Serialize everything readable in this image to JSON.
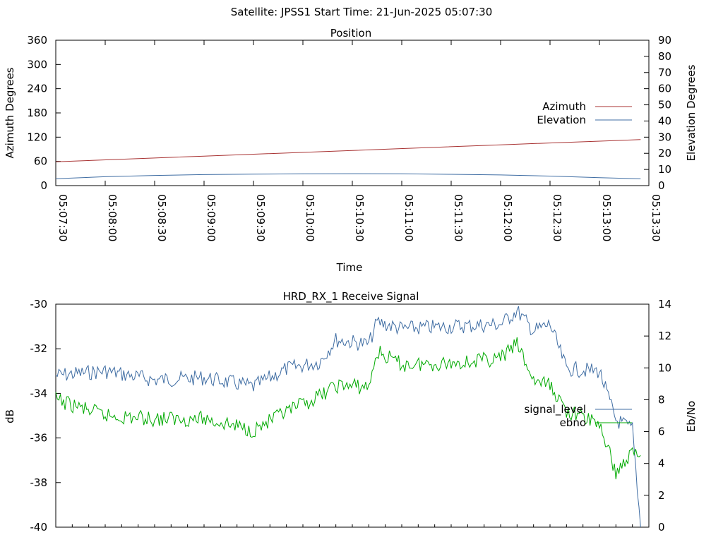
{
  "header": {
    "title": "Satellite: JPSS1    Start Time: 21-Jun-2025 05:07:30"
  },
  "colors": {
    "azimuth": "#a83232",
    "elevation": "#3f6da3",
    "signal_level": "#3f6da3",
    "ebno": "#00aa00"
  },
  "chart_data": [
    {
      "type": "line",
      "title": "Position",
      "xlabel": "Time",
      "ylabel": "Azimuth Degrees",
      "y2label": "Elevation Degrees",
      "x_range": [
        "05:07:30",
        "05:13:30"
      ],
      "x_ticks": [
        "05:07:30",
        "05:08:00",
        "05:08:30",
        "05:09:00",
        "05:09:30",
        "05:10:00",
        "05:10:30",
        "05:11:00",
        "05:11:30",
        "05:12:00",
        "05:12:30",
        "05:13:00",
        "05:13:30"
      ],
      "ylim": [
        0,
        360
      ],
      "y_ticks": [
        "0",
        "60",
        "120",
        "180",
        "240",
        "300",
        "360"
      ],
      "y2lim": [
        0,
        90
      ],
      "y2_ticks": [
        "0",
        "10",
        "20",
        "30",
        "40",
        "50",
        "60",
        "70",
        "80",
        "90"
      ],
      "legend": "right",
      "series": [
        {
          "name": "Azimuth",
          "axis": "y",
          "points": [
            [
              "05:07:30",
              59
            ],
            [
              "05:09:00",
              73
            ],
            [
              "05:10:30",
              87
            ],
            [
              "05:12:00",
              101
            ],
            [
              "05:13:25",
              114
            ]
          ]
        },
        {
          "name": "Elevation",
          "axis": "y2",
          "points": [
            [
              "05:07:30",
              4.3
            ],
            [
              "05:08:00",
              5.5
            ],
            [
              "05:08:30",
              6.3
            ],
            [
              "05:09:00",
              6.8
            ],
            [
              "05:09:30",
              7.1
            ],
            [
              "05:10:00",
              7.3
            ],
            [
              "05:10:30",
              7.4
            ],
            [
              "05:11:00",
              7.3
            ],
            [
              "05:11:30",
              7.0
            ],
            [
              "05:12:00",
              6.6
            ],
            [
              "05:12:30",
              5.9
            ],
            [
              "05:13:00",
              4.9
            ],
            [
              "05:13:25",
              4.2
            ]
          ]
        }
      ]
    },
    {
      "type": "line",
      "title": "HRD_RX_1 Receive Signal",
      "ylabel": "dB",
      "y2label": "Eb/No",
      "ylim": [
        -40,
        -30
      ],
      "y_ticks": [
        "-40",
        "-38",
        "-36",
        "-34",
        "-32",
        "-30"
      ],
      "y2lim": [
        0,
        14
      ],
      "y2_ticks": [
        "0",
        "2",
        "4",
        "6",
        "8",
        "10",
        "12",
        "14"
      ],
      "x_range": [
        "05:07:30",
        "05:13:30"
      ],
      "legend": "right",
      "series": [
        {
          "name": "signal_level",
          "axis": "y",
          "points": [
            [
              "05:07:30",
              -33.2
            ],
            [
              "05:08:00",
              -33.0
            ],
            [
              "05:08:30",
              -33.4
            ],
            [
              "05:09:00",
              -33.3
            ],
            [
              "05:09:30",
              -33.7
            ],
            [
              "05:09:50",
              -32.9
            ],
            [
              "05:10:10",
              -32.6
            ],
            [
              "05:10:20",
              -31.6
            ],
            [
              "05:10:40",
              -31.8
            ],
            [
              "05:10:45",
              -30.8
            ],
            [
              "05:11:00",
              -31.1
            ],
            [
              "05:11:30",
              -31.0
            ],
            [
              "05:12:00",
              -30.9
            ],
            [
              "05:12:10",
              -30.3
            ],
            [
              "05:12:20",
              -31.2
            ],
            [
              "05:12:30",
              -30.9
            ],
            [
              "05:12:40",
              -32.9
            ],
            [
              "05:13:00",
              -33.0
            ],
            [
              "05:13:10",
              -35.2
            ],
            [
              "05:13:20",
              -35.6
            ],
            [
              "05:13:25",
              -40.0
            ]
          ]
        },
        {
          "name": "ebno",
          "axis": "y2",
          "points": [
            [
              "05:07:30",
              8.0
            ],
            [
              "05:08:00",
              7.0
            ],
            [
              "05:08:30",
              6.8
            ],
            [
              "05:09:00",
              6.8
            ],
            [
              "05:09:30",
              6.1
            ],
            [
              "05:09:50",
              7.2
            ],
            [
              "05:10:10",
              8.2
            ],
            [
              "05:10:20",
              8.9
            ],
            [
              "05:10:40",
              8.8
            ],
            [
              "05:10:45",
              11.0
            ],
            [
              "05:11:00",
              10.2
            ],
            [
              "05:11:30",
              10.3
            ],
            [
              "05:12:00",
              10.6
            ],
            [
              "05:12:10",
              11.5
            ],
            [
              "05:12:20",
              9.2
            ],
            [
              "05:12:30",
              8.9
            ],
            [
              "05:12:40",
              7.3
            ],
            [
              "05:13:00",
              6.5
            ],
            [
              "05:13:10",
              3.4
            ],
            [
              "05:13:20",
              4.7
            ],
            [
              "05:13:25",
              4.5
            ]
          ]
        }
      ]
    }
  ]
}
